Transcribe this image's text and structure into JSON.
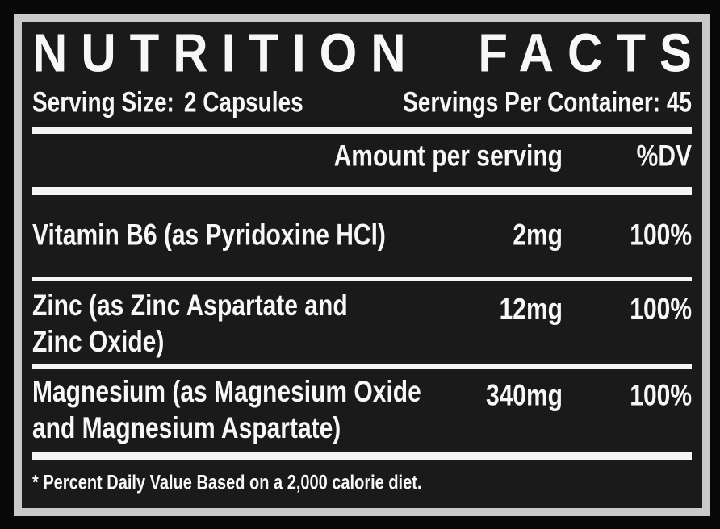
{
  "colors": {
    "outer_background": "#080808",
    "panel_background": "#1a1a1a",
    "frame_border": "#c9c9c9",
    "text": "#f7f7f7",
    "rule": "#f5f5f5"
  },
  "header": {
    "title_words": [
      "NUTRITION",
      "FACTS"
    ],
    "serving_size_label": "Serving Size:",
    "serving_size_value": "2 Capsules",
    "servings_per_container": "Servings Per Container: 45"
  },
  "table": {
    "columns": {
      "amount": "Amount per serving",
      "dv": "%DV"
    },
    "rows": [
      {
        "name_lines": [
          "Vitamin B6 (as Pyridoxine HCl)"
        ],
        "amount": "2mg",
        "dv": "100%"
      },
      {
        "name_lines": [
          "Zinc (as Zinc Aspartate and",
          "Zinc Oxide)"
        ],
        "amount": "12mg",
        "dv": "100%"
      },
      {
        "name_lines": [
          "Magnesium (as Magnesium Oxide",
          "and Magnesium Aspartate)"
        ],
        "amount": "340mg",
        "dv": "100%"
      }
    ]
  },
  "footnote": "* Percent Daily Value Based on a 2,000 calorie diet."
}
